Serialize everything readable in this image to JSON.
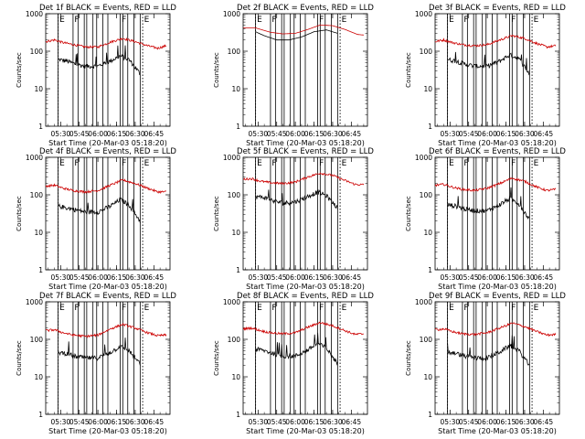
{
  "chart_data": [
    {
      "type": "line",
      "title": "Det 1f BLACK = Events, RED = LLD",
      "xlabel": "Start Time (20-Mar-03 05:18:20)",
      "ylabel": "Counts/sec",
      "y_scale": "log",
      "ylim": [
        1,
        1000
      ],
      "y_ticks": [
        "1",
        "10",
        "100",
        "1000"
      ],
      "x_ticks": [
        "05:30",
        "05:45",
        "06:00",
        "06:15",
        "06:30",
        "06:45"
      ],
      "series": [
        {
          "color": "#000000",
          "x": [
            "05:28",
            "05:35",
            "05:42",
            "05:50",
            "06:00",
            "06:10",
            "06:18",
            "06:25",
            "06:34"
          ],
          "values": [
            60,
            55,
            45,
            40,
            40,
            55,
            75,
            60,
            25
          ]
        },
        {
          "color": "#cc0000",
          "x": [
            "05:18",
            "05:25",
            "05:32",
            "05:40",
            "05:50",
            "06:00",
            "06:10",
            "06:20",
            "06:30",
            "06:40",
            "06:48",
            "06:55"
          ],
          "values": [
            180,
            200,
            170,
            150,
            130,
            130,
            175,
            220,
            180,
            140,
            120,
            140
          ]
        }
      ],
      "solid_markers": [
        "05:28",
        "05:40",
        "05:44",
        "05:49",
        "05:51",
        "05:56",
        "05:59",
        "06:04",
        "06:08",
        "06:18",
        "06:20",
        "06:24",
        "06:29",
        "06:34"
      ],
      "dotted_markers": [
        "05:28",
        "06:36"
      ],
      "flags": [
        {
          "text": "E",
          "at": "05:28"
        },
        {
          "text": "F",
          "at": "05:40"
        },
        {
          "text": "F",
          "at": "06:18"
        },
        {
          "text": "E",
          "at": "06:36"
        }
      ]
    },
    {
      "type": "line",
      "title": "Det 2f BLACK = Events, RED = LLD",
      "xlabel": "Start Time (20-Mar-03 05:18:20)",
      "ylabel": "Counts/sec",
      "y_scale": "log",
      "ylim": [
        1,
        1000
      ],
      "y_ticks": [
        "1",
        "10",
        "100",
        "1000"
      ],
      "x_ticks": [
        "05:30",
        "05:45",
        "06:00",
        "06:15",
        "06:30",
        "06:45"
      ],
      "series": [
        {
          "color": "#000000",
          "x": [
            "05:28",
            "05:35",
            "05:45",
            "05:55",
            "06:05",
            "06:15",
            "06:25",
            "06:34"
          ],
          "values": [
            330,
            260,
            200,
            200,
            240,
            330,
            370,
            300
          ]
        },
        {
          "color": "#cc0000",
          "x": [
            "05:18",
            "05:28",
            "05:40",
            "05:50",
            "06:00",
            "06:10",
            "06:20",
            "06:30",
            "06:40",
            "06:50",
            "06:55"
          ],
          "values": [
            420,
            420,
            320,
            290,
            300,
            380,
            500,
            480,
            380,
            280,
            270
          ]
        }
      ],
      "solid_markers": [
        "05:28",
        "05:40",
        "05:44",
        "05:49",
        "05:51",
        "05:56",
        "05:59",
        "06:04",
        "06:08",
        "06:18",
        "06:20",
        "06:24",
        "06:29",
        "06:34"
      ],
      "dotted_markers": [
        "05:28",
        "06:36"
      ],
      "flags": [
        {
          "text": "E",
          "at": "05:28"
        },
        {
          "text": "F",
          "at": "05:40"
        },
        {
          "text": "F",
          "at": "06:18"
        },
        {
          "text": "E",
          "at": "06:36"
        }
      ]
    },
    {
      "type": "line",
      "title": "Det 3f BLACK = Events, RED = LLD",
      "xlabel": "Start Time (20-Mar-03 05:18:20)",
      "ylabel": "Counts/sec",
      "y_scale": "log",
      "ylim": [
        1,
        1000
      ],
      "y_ticks": [
        "1",
        "10",
        "100",
        "1000"
      ],
      "x_ticks": [
        "05:30",
        "05:45",
        "06:00",
        "06:15",
        "06:30",
        "06:45"
      ],
      "series": [
        {
          "color": "#000000",
          "x": [
            "05:28",
            "05:35",
            "05:42",
            "05:50",
            "06:00",
            "06:10",
            "06:18",
            "06:25",
            "06:34"
          ],
          "values": [
            60,
            55,
            45,
            40,
            40,
            55,
            80,
            65,
            25
          ]
        },
        {
          "color": "#cc0000",
          "x": [
            "05:18",
            "05:25",
            "05:32",
            "05:40",
            "05:50",
            "06:00",
            "06:10",
            "06:20",
            "06:30",
            "06:40",
            "06:48",
            "06:55"
          ],
          "values": [
            180,
            200,
            170,
            150,
            140,
            150,
            200,
            260,
            220,
            160,
            130,
            140
          ]
        }
      ],
      "solid_markers": [
        "05:28",
        "05:40",
        "05:44",
        "05:49",
        "05:51",
        "05:56",
        "05:59",
        "06:04",
        "06:08",
        "06:18",
        "06:20",
        "06:24",
        "06:29",
        "06:34"
      ],
      "dotted_markers": [
        "05:28",
        "06:36"
      ],
      "flags": [
        {
          "text": "E",
          "at": "05:28"
        },
        {
          "text": "F",
          "at": "05:40"
        },
        {
          "text": "F",
          "at": "06:18"
        },
        {
          "text": "E",
          "at": "06:36"
        }
      ]
    },
    {
      "type": "line",
      "title": "Det 4f BLACK = Events, RED = LLD",
      "xlabel": "Start Time (20-Mar-03 05:18:20)",
      "ylabel": "Counts/sec",
      "y_scale": "log",
      "ylim": [
        1,
        1000
      ],
      "y_ticks": [
        "1",
        "10",
        "100",
        "1000"
      ],
      "x_ticks": [
        "05:30",
        "05:45",
        "06:00",
        "06:15",
        "06:30",
        "06:45"
      ],
      "series": [
        {
          "color": "#000000",
          "x": [
            "05:28",
            "05:35",
            "05:42",
            "05:50",
            "06:00",
            "06:10",
            "06:18",
            "06:25",
            "06:34"
          ],
          "values": [
            50,
            45,
            40,
            35,
            35,
            50,
            75,
            55,
            20
          ]
        },
        {
          "color": "#cc0000",
          "x": [
            "05:18",
            "05:25",
            "05:32",
            "05:40",
            "05:50",
            "06:00",
            "06:10",
            "06:20",
            "06:30",
            "06:40",
            "06:48",
            "06:55"
          ],
          "values": [
            170,
            180,
            150,
            130,
            120,
            130,
            180,
            250,
            200,
            150,
            120,
            120
          ]
        }
      ],
      "solid_markers": [
        "05:28",
        "05:40",
        "05:44",
        "05:49",
        "05:51",
        "05:56",
        "05:59",
        "06:04",
        "06:08",
        "06:18",
        "06:20",
        "06:24",
        "06:29",
        "06:34"
      ],
      "dotted_markers": [
        "05:28",
        "06:36"
      ],
      "flags": [
        {
          "text": "E",
          "at": "05:28"
        },
        {
          "text": "F",
          "at": "05:40"
        },
        {
          "text": "F",
          "at": "06:18"
        },
        {
          "text": "E",
          "at": "06:36"
        }
      ]
    },
    {
      "type": "line",
      "title": "Det 5f BLACK = Events, RED = LLD",
      "xlabel": "Start Time (20-Mar-03 05:18:20)",
      "ylabel": "Counts/sec",
      "y_scale": "log",
      "ylim": [
        1,
        1000
      ],
      "y_ticks": [
        "1",
        "10",
        "100",
        "1000"
      ],
      "x_ticks": [
        "05:30",
        "05:45",
        "06:00",
        "06:15",
        "06:30",
        "06:45"
      ],
      "series": [
        {
          "color": "#000000",
          "x": [
            "05:28",
            "05:35",
            "05:42",
            "05:50",
            "06:00",
            "06:10",
            "06:18",
            "06:25",
            "06:34"
          ],
          "values": [
            90,
            85,
            70,
            60,
            65,
            90,
            120,
            95,
            45
          ]
        },
        {
          "color": "#cc0000",
          "x": [
            "05:18",
            "05:25",
            "05:32",
            "05:40",
            "05:50",
            "06:00",
            "06:10",
            "06:20",
            "06:30",
            "06:40",
            "06:48",
            "06:55"
          ],
          "values": [
            260,
            270,
            230,
            210,
            200,
            220,
            300,
            380,
            330,
            240,
            190,
            185
          ]
        }
      ],
      "solid_markers": [
        "05:28",
        "05:40",
        "05:44",
        "05:49",
        "05:51",
        "05:56",
        "05:59",
        "06:04",
        "06:08",
        "06:18",
        "06:20",
        "06:24",
        "06:29",
        "06:34"
      ],
      "dotted_markers": [
        "05:28",
        "06:36"
      ],
      "flags": [
        {
          "text": "E",
          "at": "05:28"
        },
        {
          "text": "F",
          "at": "05:40"
        },
        {
          "text": "F",
          "at": "06:18"
        },
        {
          "text": "E",
          "at": "06:36"
        }
      ]
    },
    {
      "type": "line",
      "title": "Det 6f BLACK = Events, RED = LLD",
      "xlabel": "Start Time (20-Mar-03 05:18:20)",
      "ylabel": "Counts/sec",
      "y_scale": "log",
      "ylim": [
        1,
        1000
      ],
      "y_ticks": [
        "1",
        "10",
        "100",
        "1000"
      ],
      "x_ticks": [
        "05:30",
        "05:45",
        "06:00",
        "06:15",
        "06:30",
        "06:45"
      ],
      "series": [
        {
          "color": "#000000",
          "x": [
            "05:28",
            "05:35",
            "05:42",
            "05:50",
            "06:00",
            "06:10",
            "06:18",
            "06:25",
            "06:34"
          ],
          "values": [
            55,
            50,
            42,
            38,
            38,
            55,
            80,
            60,
            22
          ]
        },
        {
          "color": "#cc0000",
          "x": [
            "05:18",
            "05:25",
            "05:32",
            "05:40",
            "05:50",
            "06:00",
            "06:10",
            "06:20",
            "06:30",
            "06:40",
            "06:48",
            "06:55"
          ],
          "values": [
            180,
            190,
            160,
            140,
            130,
            150,
            200,
            280,
            230,
            160,
            130,
            140
          ]
        }
      ],
      "solid_markers": [
        "05:28",
        "05:40",
        "05:44",
        "05:49",
        "05:51",
        "05:56",
        "05:59",
        "06:04",
        "06:08",
        "06:18",
        "06:20",
        "06:24",
        "06:29",
        "06:34"
      ],
      "dotted_markers": [
        "05:28",
        "06:36"
      ],
      "flags": [
        {
          "text": "E",
          "at": "05:28"
        },
        {
          "text": "F",
          "at": "05:40"
        },
        {
          "text": "F",
          "at": "06:18"
        },
        {
          "text": "E",
          "at": "06:36"
        }
      ]
    },
    {
      "type": "line",
      "title": "Det 7f BLACK = Events, RED = LLD",
      "xlabel": "Start Time (20-Mar-03 05:18:20)",
      "ylabel": "Counts/sec",
      "y_scale": "log",
      "ylim": [
        1,
        1000
      ],
      "y_ticks": [
        "1",
        "10",
        "100",
        "1000"
      ],
      "x_ticks": [
        "05:30",
        "05:45",
        "06:00",
        "06:15",
        "06:30",
        "06:45"
      ],
      "series": [
        {
          "color": "#000000",
          "x": [
            "05:28",
            "05:35",
            "05:42",
            "05:50",
            "06:00",
            "06:10",
            "06:18",
            "06:25",
            "06:34"
          ],
          "values": [
            45,
            42,
            35,
            32,
            32,
            45,
            65,
            50,
            22
          ]
        },
        {
          "color": "#cc0000",
          "x": [
            "05:18",
            "05:25",
            "05:32",
            "05:40",
            "05:50",
            "06:00",
            "06:10",
            "06:20",
            "06:30",
            "06:40",
            "06:48",
            "06:55"
          ],
          "values": [
            170,
            180,
            150,
            130,
            120,
            130,
            190,
            250,
            200,
            150,
            125,
            130
          ]
        }
      ],
      "solid_markers": [
        "05:28",
        "05:40",
        "05:44",
        "05:49",
        "05:51",
        "05:56",
        "05:59",
        "06:04",
        "06:08",
        "06:18",
        "06:20",
        "06:24",
        "06:29",
        "06:34"
      ],
      "dotted_markers": [
        "05:28",
        "06:36"
      ],
      "flags": [
        {
          "text": "E",
          "at": "05:28"
        },
        {
          "text": "F",
          "at": "05:40"
        },
        {
          "text": "F",
          "at": "06:18"
        },
        {
          "text": "E",
          "at": "06:36"
        }
      ]
    },
    {
      "type": "line",
      "title": "Det 8f BLACK = Events, RED = LLD",
      "xlabel": "Start Time (20-Mar-03 05:18:20)",
      "ylabel": "Counts/sec",
      "y_scale": "log",
      "ylim": [
        1,
        1000
      ],
      "y_ticks": [
        "1",
        "10",
        "100",
        "1000"
      ],
      "x_ticks": [
        "05:30",
        "05:45",
        "06:00",
        "06:15",
        "06:30",
        "06:45"
      ],
      "series": [
        {
          "color": "#000000",
          "x": [
            "05:28",
            "05:35",
            "05:42",
            "05:50",
            "06:00",
            "06:10",
            "06:18",
            "06:25",
            "06:34"
          ],
          "values": [
            55,
            50,
            42,
            36,
            36,
            52,
            78,
            58,
            22
          ]
        },
        {
          "color": "#cc0000",
          "x": [
            "05:18",
            "05:25",
            "05:32",
            "05:40",
            "05:50",
            "06:00",
            "06:10",
            "06:20",
            "06:30",
            "06:40",
            "06:48",
            "06:55"
          ],
          "values": [
            190,
            200,
            170,
            150,
            140,
            150,
            210,
            280,
            230,
            170,
            135,
            140
          ]
        }
      ],
      "solid_markers": [
        "05:28",
        "05:40",
        "05:44",
        "05:49",
        "05:51",
        "05:56",
        "05:59",
        "06:04",
        "06:08",
        "06:18",
        "06:20",
        "06:24",
        "06:29",
        "06:34"
      ],
      "dotted_markers": [
        "05:28",
        "06:36"
      ],
      "flags": [
        {
          "text": "E",
          "at": "05:28"
        },
        {
          "text": "F",
          "at": "05:40"
        },
        {
          "text": "F",
          "at": "06:18"
        },
        {
          "text": "E",
          "at": "06:36"
        }
      ]
    },
    {
      "type": "line",
      "title": "Det 9f BLACK = Events, RED = LLD",
      "xlabel": "Start Time (20-Mar-03 05:18:20)",
      "ylabel": "Counts/sec",
      "y_scale": "log",
      "ylim": [
        1,
        1000
      ],
      "y_ticks": [
        "1",
        "10",
        "100",
        "1000"
      ],
      "x_ticks": [
        "05:30",
        "05:45",
        "06:00",
        "06:15",
        "06:30",
        "06:45"
      ],
      "series": [
        {
          "color": "#000000",
          "x": [
            "05:28",
            "05:35",
            "05:42",
            "05:50",
            "06:00",
            "06:10",
            "06:18",
            "06:25",
            "06:34"
          ],
          "values": [
            45,
            42,
            36,
            32,
            32,
            46,
            68,
            52,
            20
          ]
        },
        {
          "color": "#cc0000",
          "x": [
            "05:18",
            "05:25",
            "05:32",
            "05:40",
            "05:50",
            "06:00",
            "06:10",
            "06:20",
            "06:30",
            "06:40",
            "06:48",
            "06:55"
          ],
          "values": [
            180,
            190,
            160,
            140,
            135,
            150,
            200,
            270,
            220,
            160,
            130,
            135
          ]
        }
      ],
      "solid_markers": [
        "05:28",
        "05:40",
        "05:44",
        "05:49",
        "05:51",
        "05:56",
        "05:59",
        "06:04",
        "06:08",
        "06:18",
        "06:20",
        "06:24",
        "06:29",
        "06:34"
      ],
      "dotted_markers": [
        "05:28",
        "06:36"
      ],
      "flags": [
        {
          "text": "E",
          "at": "05:28"
        },
        {
          "text": "F",
          "at": "05:40"
        },
        {
          "text": "F",
          "at": "06:18"
        },
        {
          "text": "E",
          "at": "06:36"
        }
      ]
    }
  ]
}
